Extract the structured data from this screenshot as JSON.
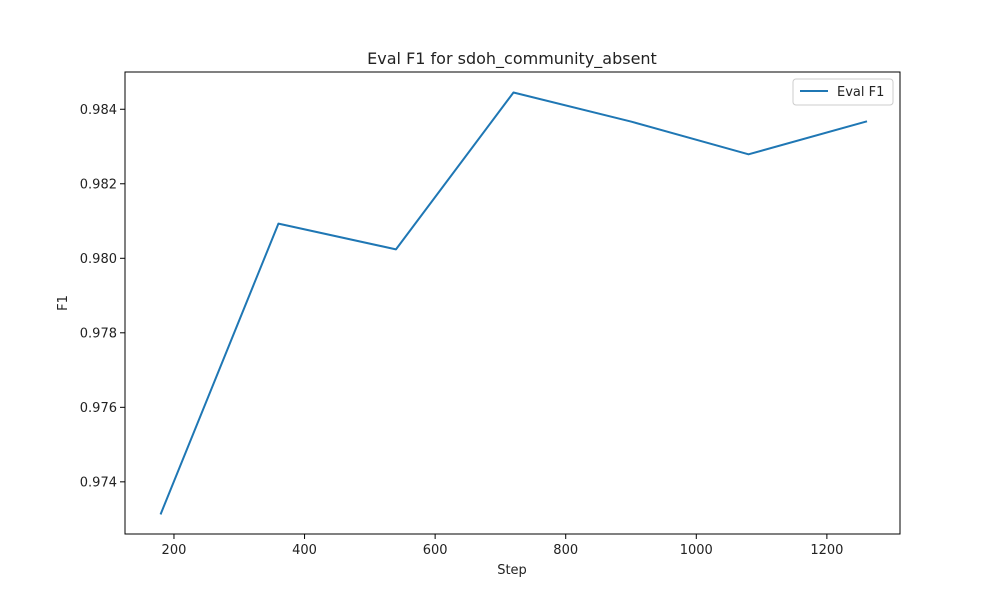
{
  "chart_data": {
    "type": "line",
    "title": "Eval F1 for sdoh_community_absent",
    "xlabel": "Step",
    "ylabel": "F1",
    "xlim": [
      125,
      1312
    ],
    "ylim": [
      0.9726,
      0.985
    ],
    "xticks": [
      200,
      400,
      600,
      800,
      1000,
      1200
    ],
    "yticks": [
      0.974,
      0.976,
      0.978,
      0.98,
      0.982,
      0.984
    ],
    "ytick_labels": [
      "0.974",
      "0.976",
      "0.978",
      "0.980",
      "0.982",
      "0.984"
    ],
    "grid": false,
    "legend_position": "upper right",
    "series": [
      {
        "name": "Eval F1",
        "color": "#1f77b4",
        "x": [
          180,
          360,
          540,
          720,
          900,
          1080,
          1260
        ],
        "y": [
          0.97315,
          0.98093,
          0.98024,
          0.98445,
          0.98367,
          0.98279,
          0.98367
        ]
      }
    ]
  }
}
